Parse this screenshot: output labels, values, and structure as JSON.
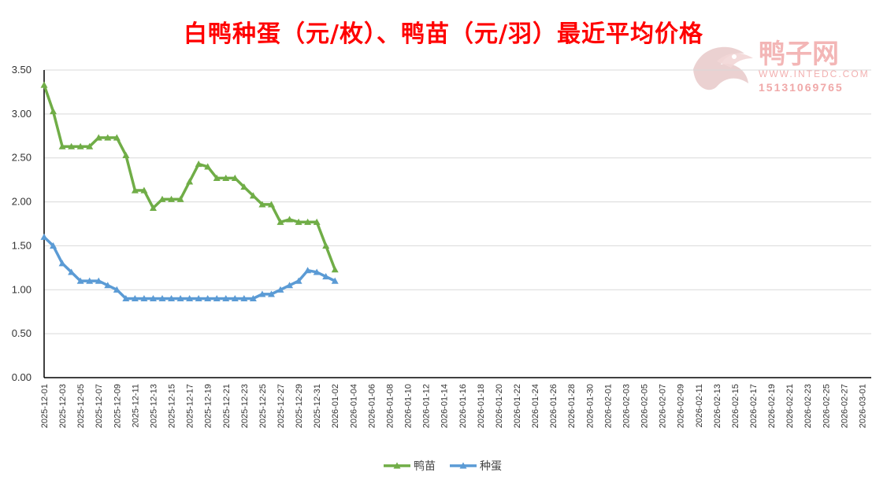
{
  "chart_data": {
    "type": "line",
    "title": "白鸭种蛋（元/枚）、鸭苗（元/羽）最近平均价格",
    "xlabel": "",
    "ylabel": "",
    "ylim": [
      0,
      3.5
    ],
    "yticks": [
      "0.00",
      "0.50",
      "1.00",
      "1.50",
      "2.00",
      "2.50",
      "3.00",
      "3.50"
    ],
    "xlim": [
      "2025-12-01",
      "2026-03-02"
    ],
    "xticks": [
      "2025-12-01",
      "2025-12-03",
      "2025-12-05",
      "2025-12-07",
      "2025-12-09",
      "2025-12-11",
      "2025-12-13",
      "2025-12-15",
      "2025-12-17",
      "2025-12-19",
      "2025-12-21",
      "2025-12-23",
      "2025-12-25",
      "2025-12-27",
      "2025-12-29",
      "2025-12-31",
      "2026-01-02",
      "2026-01-04",
      "2026-01-06",
      "2026-01-08",
      "2026-01-10",
      "2026-01-12",
      "2026-01-14",
      "2026-01-16",
      "2026-01-18",
      "2026-01-20",
      "2026-01-22",
      "2026-01-24",
      "2026-01-26",
      "2026-01-28",
      "2026-01-30",
      "2026-02-01",
      "2026-02-03",
      "2026-02-05",
      "2026-02-07",
      "2026-02-09",
      "2026-02-11",
      "2026-02-13",
      "2026-02-15",
      "2026-02-17",
      "2026-02-19",
      "2026-02-21",
      "2026-02-23",
      "2026-02-25",
      "2026-02-27",
      "2026-03-01"
    ],
    "x": [
      "2025-12-01",
      "2025-12-02",
      "2025-12-03",
      "2025-12-04",
      "2025-12-05",
      "2025-12-06",
      "2025-12-07",
      "2025-12-08",
      "2025-12-09",
      "2025-12-10",
      "2025-12-11",
      "2025-12-12",
      "2025-12-13",
      "2025-12-14",
      "2025-12-15",
      "2025-12-16",
      "2025-12-17",
      "2025-12-18",
      "2025-12-19",
      "2025-12-20",
      "2025-12-21",
      "2025-12-22",
      "2025-12-23",
      "2025-12-24",
      "2025-12-25",
      "2025-12-26",
      "2025-12-27",
      "2025-12-28",
      "2025-12-29",
      "2025-12-30",
      "2025-12-31",
      "2026-01-01",
      "2026-01-02"
    ],
    "series": [
      {
        "name": "鸭苗",
        "color": "#70ad47",
        "values": [
          3.33,
          3.03,
          2.63,
          2.63,
          2.63,
          2.63,
          2.73,
          2.73,
          2.73,
          2.53,
          2.13,
          2.13,
          1.93,
          2.03,
          2.03,
          2.03,
          2.23,
          2.43,
          2.4,
          2.27,
          2.27,
          2.27,
          2.17,
          2.07,
          1.97,
          1.97,
          1.77,
          1.8,
          1.77,
          1.77,
          1.77,
          1.5,
          1.23
        ]
      },
      {
        "name": "种蛋",
        "color": "#5b9bd5",
        "values": [
          1.6,
          1.5,
          1.3,
          1.2,
          1.1,
          1.1,
          1.1,
          1.05,
          1.0,
          0.9,
          0.9,
          0.9,
          0.9,
          0.9,
          0.9,
          0.9,
          0.9,
          0.9,
          0.9,
          0.9,
          0.9,
          0.9,
          0.9,
          0.9,
          0.95,
          0.95,
          1.0,
          1.05,
          1.1,
          1.22,
          1.2,
          1.15,
          1.1
        ]
      }
    ],
    "grid": true,
    "legend": "bottom-center"
  },
  "watermark": {
    "name": "鸭子网",
    "site": "WWW.INTEDC.COM",
    "phone": "15131069765"
  }
}
